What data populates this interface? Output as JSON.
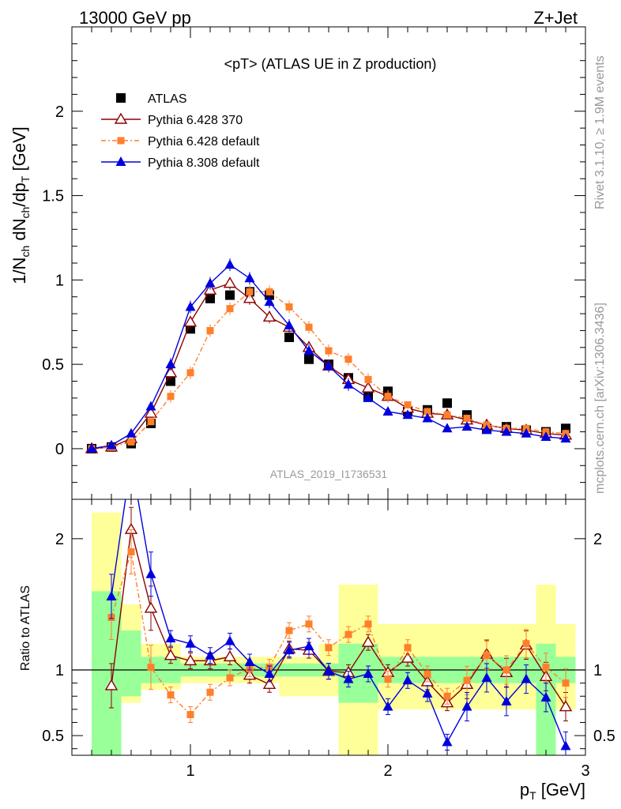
{
  "header": {
    "left": "13000 GeV pp",
    "right": "Z+Jet"
  },
  "side_labels": {
    "rivet": "Rivet 3.1.10, ≥ 1.9M events",
    "mcplots": "mcplots.cern.ch [arXiv:1306.3436]"
  },
  "main_panel": {
    "title": "<pT> (ATLAS UE in Z production)",
    "watermark": "ATLAS_2019_I1736531",
    "ylabel": "1/N_ch dN_ch/dp_T [GeV]"
  },
  "ratio_panel": {
    "ylabel": "Ratio to ATLAS"
  },
  "xlabel": "p_T [GeV]",
  "legend": [
    {
      "label": "ATLAS",
      "color": "#000000",
      "marker": "square-filled"
    },
    {
      "label": "Pythia 6.428 370",
      "color": "#8b0000",
      "marker": "triangle-open"
    },
    {
      "label": "Pythia 6.428 default",
      "color": "#ff7f2a",
      "marker": "square-filled-small"
    },
    {
      "label": "Pythia 8.308 default",
      "color": "#0000dd",
      "marker": "triangle-filled"
    }
  ],
  "chart_data": [
    {
      "type": "line",
      "x": [
        0.5,
        0.6,
        0.7,
        0.8,
        0.9,
        1.0,
        1.1,
        1.2,
        1.3,
        1.4,
        1.5,
        1.6,
        1.7,
        1.8,
        1.9,
        2.0,
        2.1,
        2.2,
        2.3,
        2.4,
        2.5,
        2.6,
        2.7,
        2.8,
        2.9
      ],
      "xlim": [
        0.4,
        3.0
      ],
      "ylim": [
        -0.3,
        2.5
      ],
      "yticks": [
        0,
        0.5,
        1,
        1.5,
        2
      ],
      "xticks": [
        1,
        2,
        3
      ],
      "series": [
        {
          "name": "ATLAS",
          "values": [
            0.0,
            0.01,
            0.03,
            0.15,
            0.4,
            0.71,
            0.89,
            0.91,
            0.93,
            0.91,
            0.66,
            0.53,
            0.5,
            0.42,
            0.31,
            0.34,
            0.22,
            0.23,
            0.27,
            0.2,
            0.12,
            0.13,
            0.11,
            0.1,
            0.12
          ]
        },
        {
          "name": "Pythia 6.428 370",
          "values": [
            0.0,
            0.01,
            0.06,
            0.21,
            0.45,
            0.75,
            0.94,
            0.98,
            0.89,
            0.78,
            0.72,
            0.6,
            0.49,
            0.41,
            0.36,
            0.31,
            0.24,
            0.21,
            0.2,
            0.17,
            0.14,
            0.12,
            0.11,
            0.09,
            0.08
          ]
        },
        {
          "name": "Pythia 6.428 default",
          "values": [
            0.0,
            0.01,
            0.04,
            0.16,
            0.31,
            0.45,
            0.7,
            0.83,
            0.93,
            0.93,
            0.84,
            0.72,
            0.58,
            0.53,
            0.41,
            0.31,
            0.26,
            0.22,
            0.2,
            0.18,
            0.14,
            0.12,
            0.12,
            0.1,
            0.09
          ]
        },
        {
          "name": "Pythia 8.308 default",
          "values": [
            0.0,
            0.02,
            0.09,
            0.25,
            0.5,
            0.84,
            0.98,
            1.09,
            1.01,
            0.87,
            0.73,
            0.58,
            0.49,
            0.38,
            0.3,
            0.22,
            0.2,
            0.18,
            0.12,
            0.13,
            0.11,
            0.1,
            0.09,
            0.07,
            0.06
          ]
        }
      ]
    },
    {
      "type": "line",
      "x": [
        0.6,
        0.7,
        0.8,
        0.9,
        1.0,
        1.1,
        1.2,
        1.3,
        1.4,
        1.5,
        1.6,
        1.7,
        1.8,
        1.9,
        2.0,
        2.1,
        2.2,
        2.3,
        2.4,
        2.5,
        2.6,
        2.7,
        2.8,
        2.9
      ],
      "xlim": [
        0.4,
        3.0
      ],
      "ylim": [
        0.35,
        2.3
      ],
      "yticks": [
        0.5,
        1,
        2
      ],
      "xticks": [
        1,
        2,
        3
      ],
      "reference": 1,
      "series": [
        {
          "name": "Pythia 6.428 370",
          "values": [
            0.88,
            2.07,
            1.47,
            1.11,
            1.07,
            1.07,
            1.1,
            0.96,
            0.89,
            1.16,
            1.15,
            0.99,
            0.98,
            1.21,
            0.98,
            1.09,
            0.91,
            0.75,
            0.89,
            1.12,
            0.98,
            1.19,
            0.95,
            0.72
          ]
        },
        {
          "name": "Pythia 6.428 default",
          "values": [
            1.4,
            1.9,
            1.02,
            0.81,
            0.66,
            0.83,
            0.94,
            1.01,
            1.02,
            1.3,
            1.35,
            1.17,
            1.27,
            1.35,
            0.93,
            1.17,
            0.97,
            0.8,
            0.92,
            1.11,
            1.0,
            1.2,
            1.02,
            0.9
          ]
        },
        {
          "name": "Pythia 8.308 default",
          "values": [
            1.56,
            2.6,
            1.73,
            1.24,
            1.2,
            1.11,
            1.22,
            1.06,
            0.97,
            1.15,
            1.18,
            0.99,
            0.93,
            0.97,
            0.72,
            0.92,
            0.82,
            0.45,
            0.72,
            0.94,
            0.76,
            0.93,
            0.79,
            0.42
          ]
        }
      ],
      "bands": {
        "x_edges": [
          0.5,
          0.55,
          0.65,
          0.75,
          0.85,
          0.95,
          1.05,
          1.15,
          1.25,
          1.35,
          1.45,
          1.55,
          1.65,
          1.75,
          1.85,
          1.95,
          2.05,
          2.15,
          2.25,
          2.35,
          2.45,
          2.55,
          2.65,
          2.75,
          2.85,
          2.95
        ],
        "green": [
          [
            0.35,
            1.6
          ],
          [
            0.35,
            1.6
          ],
          [
            0.8,
            1.3
          ],
          [
            0.9,
            1.1
          ],
          [
            0.9,
            1.1
          ],
          [
            0.95,
            1.05
          ],
          [
            0.95,
            1.05
          ],
          [
            0.95,
            1.05
          ],
          [
            0.95,
            1.05
          ],
          [
            0.95,
            1.05
          ],
          [
            0.95,
            1.05
          ],
          [
            0.95,
            1.05
          ],
          [
            0.95,
            1.05
          ],
          [
            0.75,
            1.2
          ],
          [
            0.75,
            1.2
          ],
          [
            0.9,
            1.1
          ],
          [
            0.9,
            1.1
          ],
          [
            0.9,
            1.1
          ],
          [
            0.9,
            1.1
          ],
          [
            0.9,
            1.1
          ],
          [
            0.9,
            1.1
          ],
          [
            0.9,
            1.1
          ],
          [
            0.9,
            1.1
          ],
          [
            0.35,
            1.2
          ],
          [
            0.9,
            1.1
          ]
        ],
        "yellow": [
          [
            0.35,
            2.2
          ],
          [
            0.35,
            2.2
          ],
          [
            0.75,
            1.5
          ],
          [
            0.85,
            1.2
          ],
          [
            0.85,
            1.2
          ],
          [
            0.9,
            1.1
          ],
          [
            0.9,
            1.1
          ],
          [
            0.9,
            1.1
          ],
          [
            0.9,
            1.1
          ],
          [
            0.9,
            1.1
          ],
          [
            0.8,
            1.1
          ],
          [
            0.8,
            1.1
          ],
          [
            0.8,
            1.2
          ],
          [
            0.35,
            1.65
          ],
          [
            0.35,
            1.65
          ],
          [
            0.7,
            1.35
          ],
          [
            0.7,
            1.35
          ],
          [
            0.7,
            1.35
          ],
          [
            0.7,
            1.35
          ],
          [
            0.7,
            1.35
          ],
          [
            0.7,
            1.35
          ],
          [
            0.7,
            1.35
          ],
          [
            0.7,
            1.35
          ],
          [
            0.35,
            1.65
          ],
          [
            0.7,
            1.35
          ]
        ]
      }
    }
  ]
}
